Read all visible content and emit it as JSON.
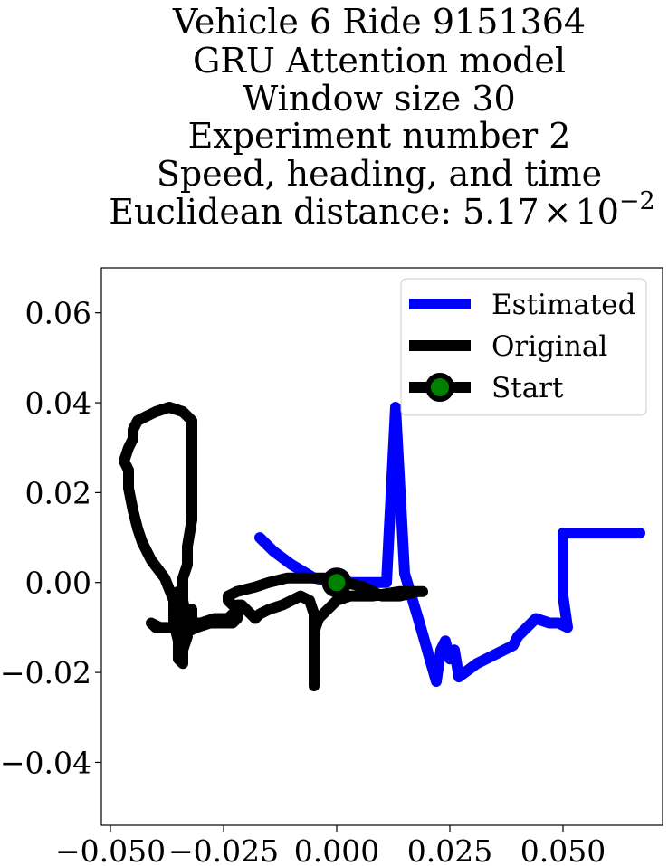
{
  "chart_data": {
    "type": "line",
    "title_lines": [
      "Vehicle 6 Ride 9151364",
      "GRU Attention model",
      "Window size 30",
      "Experiment number 2",
      "Speed, heading, and time"
    ],
    "title_distance_prefix": "Euclidean distance: 5.17",
    "title_distance_times": "×",
    "title_distance_base": "10",
    "title_distance_exponent": "−2",
    "xlabel": "",
    "ylabel": "",
    "xlim": [
      -0.052,
      0.072
    ],
    "ylim": [
      -0.054,
      0.07
    ],
    "xticks": [
      -0.05,
      -0.025,
      0.0,
      0.025,
      0.05
    ],
    "xtick_labels": [
      "−0.050",
      "−0.025",
      "0.000",
      "0.025",
      "0.050"
    ],
    "yticks": [
      -0.04,
      -0.02,
      0.0,
      0.02,
      0.04,
      0.06
    ],
    "ytick_labels": [
      "−0.04",
      "−0.02",
      "0.00",
      "0.02",
      "0.04",
      "0.06"
    ],
    "grid": false,
    "legend_position": "top-right",
    "series": [
      {
        "name": "Estimated",
        "color": "#0000ff",
        "points": [
          [
            -0.017,
            0.01
          ],
          [
            -0.014,
            0.007
          ],
          [
            -0.01,
            0.004
          ],
          [
            -0.005,
            0.001
          ],
          [
            0.0,
            0.0
          ],
          [
            0.005,
            0.0
          ],
          [
            0.011,
            0.0
          ],
          [
            0.013,
            0.039
          ],
          [
            0.015,
            0.002
          ],
          [
            0.018,
            -0.008
          ],
          [
            0.02,
            -0.015
          ],
          [
            0.022,
            -0.022
          ],
          [
            0.023,
            -0.015
          ],
          [
            0.024,
            -0.013
          ],
          [
            0.025,
            -0.017
          ],
          [
            0.026,
            -0.015
          ],
          [
            0.027,
            -0.021
          ],
          [
            0.031,
            -0.018
          ],
          [
            0.035,
            -0.016
          ],
          [
            0.039,
            -0.014
          ],
          [
            0.04,
            -0.012
          ],
          [
            0.044,
            -0.008
          ],
          [
            0.047,
            -0.009
          ],
          [
            0.049,
            -0.009
          ],
          [
            0.051,
            -0.01
          ],
          [
            0.05,
            -0.003
          ],
          [
            0.05,
            0.004
          ],
          [
            0.05,
            0.011
          ],
          [
            0.056,
            0.011
          ],
          [
            0.062,
            0.011
          ],
          [
            0.067,
            0.011
          ]
        ]
      },
      {
        "name": "Original",
        "color": "#000000",
        "points": [
          [
            0.0,
            0.0
          ],
          [
            0.002,
            0.0
          ],
          [
            0.006,
            -0.001
          ],
          [
            0.01,
            -0.003
          ],
          [
            0.014,
            -0.003
          ],
          [
            0.018,
            -0.002
          ],
          [
            0.019,
            -0.002
          ],
          [
            0.014,
            -0.002
          ],
          [
            0.008,
            -0.003
          ],
          [
            0.003,
            -0.003
          ],
          [
            0.0,
            -0.004
          ],
          [
            -0.002,
            -0.006
          ],
          [
            -0.004,
            -0.008
          ],
          [
            -0.005,
            -0.011
          ],
          [
            -0.005,
            -0.016
          ],
          [
            -0.005,
            -0.019
          ],
          [
            -0.005,
            -0.023
          ],
          [
            -0.005,
            -0.018
          ],
          [
            -0.005,
            -0.012
          ],
          [
            -0.005,
            -0.007
          ],
          [
            -0.006,
            -0.004
          ],
          [
            -0.008,
            -0.003
          ],
          [
            -0.012,
            -0.005
          ],
          [
            -0.015,
            -0.006
          ],
          [
            -0.017,
            -0.007
          ],
          [
            -0.018,
            -0.008
          ],
          [
            -0.019,
            -0.007
          ],
          [
            -0.021,
            -0.005
          ],
          [
            -0.022,
            -0.005
          ],
          [
            -0.022,
            -0.008
          ],
          [
            -0.023,
            -0.009
          ],
          [
            -0.025,
            -0.009
          ],
          [
            -0.028,
            -0.009
          ],
          [
            -0.031,
            -0.01
          ],
          [
            -0.033,
            -0.011
          ],
          [
            -0.032,
            -0.008
          ],
          [
            -0.032,
            -0.006
          ],
          [
            -0.034,
            -0.008
          ],
          [
            -0.034,
            -0.005
          ],
          [
            -0.035,
            -0.002
          ],
          [
            -0.034,
            -0.004
          ],
          [
            -0.033,
            -0.012
          ],
          [
            -0.034,
            -0.015
          ],
          [
            -0.034,
            -0.018
          ],
          [
            -0.035,
            -0.017
          ],
          [
            -0.035,
            -0.013
          ],
          [
            -0.036,
            -0.009
          ],
          [
            -0.036,
            -0.004
          ],
          [
            -0.038,
            0.001
          ],
          [
            -0.041,
            0.005
          ],
          [
            -0.043,
            0.009
          ],
          [
            -0.044,
            0.012
          ],
          [
            -0.045,
            0.016
          ],
          [
            -0.046,
            0.021
          ],
          [
            -0.046,
            0.025
          ],
          [
            -0.047,
            0.027
          ],
          [
            -0.046,
            0.03
          ],
          [
            -0.045,
            0.032
          ],
          [
            -0.045,
            0.034
          ],
          [
            -0.044,
            0.036
          ],
          [
            -0.042,
            0.037
          ],
          [
            -0.04,
            0.038
          ],
          [
            -0.037,
            0.039
          ],
          [
            -0.034,
            0.038
          ],
          [
            -0.032,
            0.036
          ],
          [
            -0.032,
            0.032
          ],
          [
            -0.032,
            0.026
          ],
          [
            -0.032,
            0.02
          ],
          [
            -0.032,
            0.014
          ],
          [
            -0.033,
            0.008
          ],
          [
            -0.033,
            0.004
          ],
          [
            -0.034,
            0.001
          ],
          [
            -0.034,
            -0.001
          ],
          [
            -0.034,
            -0.004
          ],
          [
            -0.033,
            -0.009
          ],
          [
            -0.035,
            -0.01
          ],
          [
            -0.037,
            -0.01
          ],
          [
            -0.039,
            -0.01
          ],
          [
            -0.041,
            -0.009
          ],
          [
            -0.04,
            -0.01
          ],
          [
            -0.037,
            -0.01
          ],
          [
            -0.034,
            -0.009
          ],
          [
            -0.032,
            -0.009
          ],
          [
            -0.03,
            -0.009
          ],
          [
            -0.027,
            -0.008
          ],
          [
            -0.024,
            -0.008
          ],
          [
            -0.023,
            -0.007
          ],
          [
            -0.022,
            -0.006
          ],
          [
            -0.024,
            -0.004
          ],
          [
            -0.024,
            -0.003
          ],
          [
            -0.022,
            -0.002
          ],
          [
            -0.018,
            -0.001
          ],
          [
            -0.015,
            0.0
          ],
          [
            -0.011,
            0.001
          ],
          [
            -0.008,
            0.001
          ],
          [
            -0.005,
            0.001
          ],
          [
            -0.002,
            0.001
          ],
          [
            0.0,
            0.0
          ]
        ]
      }
    ],
    "start_marker": {
      "name": "Start",
      "x": 0.0,
      "y": 0.0,
      "edge_color": "#000000",
      "face_color": "#008000"
    }
  }
}
